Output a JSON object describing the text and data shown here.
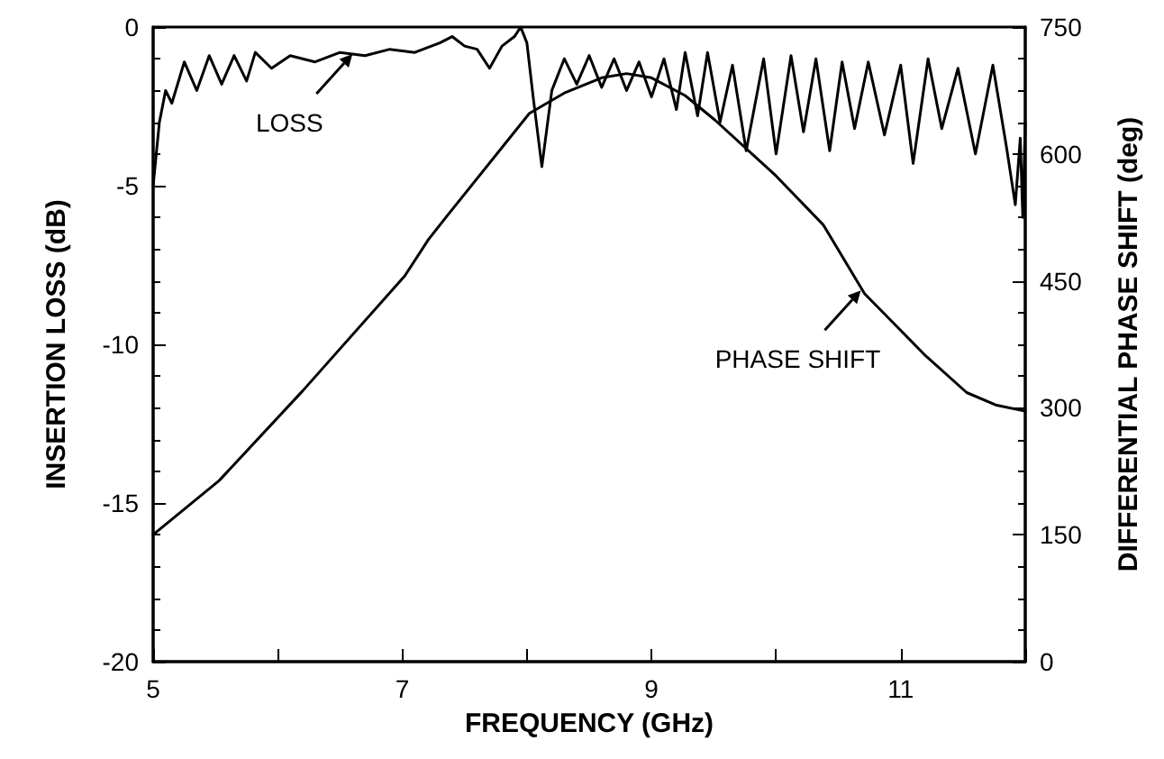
{
  "chart_data": {
    "type": "line",
    "xlabel": "FREQUENCY (GHz)",
    "ylabel": "INSERTION LOSS (dB)",
    "y2label": "DIFFERENTIAL PHASE SHIFT (deg)",
    "xlim": [
      5,
      12
    ],
    "xticks": [
      5,
      {
        "value": 6,
        "label": null
      },
      7,
      {
        "value": 8,
        "label": null
      },
      9,
      {
        "value": 10,
        "label": null
      },
      11,
      {
        "value": 12,
        "label": null
      }
    ],
    "ylim": [
      -20,
      0
    ],
    "yticks": [
      -20,
      -15,
      -10,
      -5,
      0
    ],
    "y2lim": [
      0,
      750
    ],
    "y2ticks": [
      0,
      150,
      300,
      450,
      600,
      750
    ],
    "grid": false,
    "marker": "none",
    "line_style": "solid",
    "annotations": [
      {
        "text": "LOSS",
        "x": 6.6,
        "y": -0.85
      },
      {
        "text": "PHASE SHIFT",
        "x": 10.68,
        "y": -8.3
      }
    ],
    "series": [
      {
        "color": "#000000",
        "x": [
          5.0,
          5.05,
          5.1,
          5.15,
          5.25,
          5.35,
          5.45,
          5.55,
          5.65,
          5.75,
          5.82,
          5.95,
          6.1,
          6.3,
          6.5,
          6.7,
          6.9,
          7.1,
          7.3,
          7.4,
          7.5,
          7.6,
          7.7,
          7.8,
          7.9,
          7.95,
          8.0,
          8.05,
          8.12,
          8.2,
          8.3,
          8.4,
          8.5,
          8.6,
          8.7,
          8.8,
          8.9,
          9.0,
          9.1,
          9.2,
          9.27,
          9.37,
          9.45,
          9.55,
          9.65,
          9.76,
          9.9,
          10.0,
          10.12,
          10.22,
          10.32,
          10.43,
          10.53,
          10.63,
          10.74,
          10.87,
          11.0,
          11.1,
          11.22,
          11.33,
          11.46,
          11.6,
          11.74,
          11.85,
          11.92,
          11.96,
          11.98,
          12.0
        ],
        "values": [
          -5.0,
          -3.0,
          -2.0,
          -2.4,
          -1.1,
          -2.0,
          -0.9,
          -1.8,
          -0.9,
          -1.7,
          -0.8,
          -1.3,
          -0.9,
          -1.1,
          -0.8,
          -0.9,
          -0.7,
          -0.8,
          -0.5,
          -0.3,
          -0.6,
          -0.7,
          -1.3,
          -0.6,
          -0.3,
          0,
          -0.5,
          -2.2,
          -4.4,
          -2.0,
          -1.0,
          -1.8,
          -0.9,
          -1.9,
          -1.0,
          -2.0,
          -1.1,
          -2.2,
          -1.0,
          -2.6,
          -0.8,
          -2.8,
          -0.8,
          -3.0,
          -1.2,
          -3.9,
          -1.0,
          -4.0,
          -0.9,
          -3.3,
          -1.0,
          -3.9,
          -1.1,
          -3.2,
          -1.1,
          -3.4,
          -1.2,
          -4.3,
          -1.0,
          -3.2,
          -1.3,
          -4.0,
          -1.2,
          -3.8,
          -5.6,
          -3.5,
          -6.0,
          -3.0
        ]
      },
      {
        "color": "#000000",
        "axis": "y2",
        "x": [
          5.0,
          5.53,
          6.2,
          7.02,
          7.21,
          7.36,
          8.02,
          8.3,
          8.6,
          8.8,
          9.0,
          9.27,
          9.51,
          10.0,
          10.38,
          10.71,
          11.19,
          11.53,
          11.77,
          12.0
        ],
        "values": [
          150,
          214,
          320,
          456,
          499,
          527,
          648,
          672,
          690,
          695,
          690,
          669,
          640,
          574,
          516,
          435,
          363,
          318,
          303,
          296
        ]
      }
    ]
  }
}
